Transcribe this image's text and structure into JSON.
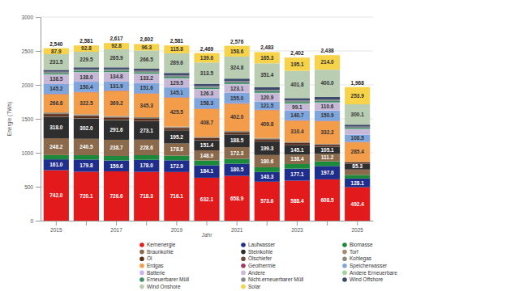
{
  "chart_data": {
    "type": "bar",
    "stacked": true,
    "grid": true,
    "legend": "bottom",
    "data_labels": true,
    "x_label": "Jahr",
    "y_label": "Energie (TWh)",
    "categories": [
      "2015",
      null,
      "2017",
      null,
      "2019",
      null,
      "2021",
      null,
      "2023",
      null,
      "2025"
    ],
    "ylim": [
      0,
      3000
    ],
    "yticks": [
      0,
      500,
      1000,
      1500,
      2000,
      2500,
      3000
    ],
    "totals": [
      2540,
      2581,
      2617,
      2602,
      2581,
      2469,
      2576,
      2483,
      2402,
      2438,
      1968
    ],
    "total_labels": [
      "2,540",
      "2,581",
      "2,617",
      "2,602",
      "2,581",
      "2,469",
      "2,576",
      "2,483",
      "2,402",
      "2,438",
      "1,968"
    ],
    "series": [
      {
        "name": "Kernenergie",
        "color": "#e31a1c",
        "values": [
          742.0,
          720.1,
          726.6,
          718.3,
          716.1,
          632.1,
          658.9,
          573.6,
          588.4,
          608.5,
          492.4
        ],
        "value_labels": [
          "742.0",
          "720.1",
          "726.6",
          "718.3",
          "716.1",
          "632.1",
          "658.9",
          "573.6",
          "588.4",
          "608.5",
          "492.4"
        ]
      },
      {
        "name": "Laufwasser",
        "color": "#1f2e8c",
        "values": [
          161.0,
          179.8,
          159.6,
          178.0,
          172.9,
          184.1,
          180.5,
          143.3,
          177.1,
          197.0,
          128.1
        ],
        "value_labels": [
          "161.0",
          "179.8",
          "159.6",
          "178.0",
          "172.9",
          "184.1",
          "180.5",
          "143.3",
          "177.1",
          "197.0",
          "128.1"
        ]
      },
      {
        "name": "Biomasse",
        "color": "#1b8a3a",
        "values": [
          63.2,
          64.8,
          66.4,
          67.9,
          68.5,
          70.1,
          70.9,
          69.2,
          68.0,
          67.4,
          52.8
        ]
      },
      {
        "name": "Braunkohle",
        "color": "#8a6a4a",
        "values": [
          248.2,
          240.5,
          238.7,
          228.6,
          178.8,
          148.9,
          172.3,
          180.6,
          138.4,
          111.2,
          79.7
        ],
        "value_labels": [
          "248.2",
          "240.5",
          "238.7",
          "228.6",
          "178.8",
          "148.9",
          "172.3",
          "180.6",
          "138.4",
          "111.2",
          null
        ]
      },
      {
        "name": "Steinkohle",
        "color": "#2e2e2e",
        "values": [
          318.0,
          302.0,
          291.6,
          273.1,
          195.2,
          151.4,
          188.5,
          199.3,
          145.1,
          105.1,
          85.3
        ],
        "value_labels": [
          "318.0",
          "302.0",
          "291.6",
          "273.1",
          "195.2",
          "151.4",
          "188.5",
          "199.3",
          "145.1",
          "105.1",
          "85.3"
        ]
      },
      {
        "name": "Torf",
        "color": "#a98b6d",
        "values": [
          4.8,
          4.5,
          4.6,
          4.2,
          3.9,
          3.1,
          3.4,
          3.6,
          2.9,
          2.5,
          1.8
        ]
      },
      {
        "name": "Öl",
        "color": "#5a2d1a",
        "values": [
          32.5,
          31.8,
          30.9,
          30.1,
          29.4,
          27.6,
          27.2,
          28.5,
          26.3,
          25.1,
          18.2
        ]
      },
      {
        "name": "Ölschiefer",
        "color": "#6b4e3d",
        "values": [
          9.8,
          9.1,
          9.5,
          9.7,
          7.8,
          5.6,
          6.8,
          7.9,
          5.4,
          4.8,
          3.3
        ]
      },
      {
        "name": "Kohlegas",
        "color": "#8c8c7a",
        "values": [
          14.2,
          14.6,
          14.1,
          13.8,
          12.9,
          11.4,
          12.2,
          11.8,
          10.5,
          10.1,
          7.1
        ]
      },
      {
        "name": "Erdgas",
        "color": "#f39c4a",
        "values": [
          266.8,
          322.5,
          369.2,
          345.3,
          425.5,
          408.7,
          402.0,
          409.8,
          310.4,
          332.2,
          285.4
        ],
        "value_labels": [
          "266.8",
          "322.5",
          "369.2",
          "345.3",
          "425.5",
          "408.7",
          "402.0",
          "409.8",
          "310.4",
          "332.2",
          "285.4"
        ]
      },
      {
        "name": "Geothermie",
        "color": "#9e3d64",
        "values": [
          6.2,
          6.3,
          6.2,
          6.3,
          6.4,
          6.5,
          6.4,
          6.3,
          6.2,
          6.3,
          4.6
        ]
      },
      {
        "name": "Speicherwasser",
        "color": "#7fa6dc",
        "values": [
          145.2,
          150.4,
          131.9,
          151.6,
          145.1,
          158.3,
          155.0,
          121.5,
          140.7,
          150.9,
          108.5
        ],
        "value_labels": [
          "145.2",
          "150.4",
          "131.9",
          "151.6",
          "145.1",
          "158.3",
          "155.0",
          "121.5",
          "140.7",
          "150.9",
          "108.5"
        ]
      },
      {
        "name": "Batterie",
        "color": "#c9b3f0",
        "values": [
          0.2,
          0.3,
          0.4,
          0.5,
          0.7,
          0.9,
          1.2,
          1.8,
          2.9,
          4.6,
          4.3
        ]
      },
      {
        "name": "Andere",
        "color": "#c8b8d8",
        "values": [
          138.5,
          138.0,
          134.8,
          133.2,
          129.5,
          126.3,
          123.1,
          120.9,
          99.1,
          110.6,
          77.4
        ],
        "value_labels": [
          "138.5",
          "138.0",
          "134.8",
          "133.2",
          "129.5",
          "126.3",
          "123.1",
          "120.9",
          "99.1",
          "110.6",
          null
        ]
      },
      {
        "name": "Andere Erneuerbare",
        "color": "#9fd39f",
        "values": [
          4.1,
          4.3,
          4.4,
          4.5,
          4.6,
          4.8,
          4.9,
          5.0,
          5.1,
          5.2,
          3.9
        ]
      },
      {
        "name": "Erneuerbarer Müll",
        "color": "#3d8f6a",
        "values": [
          19.6,
          20.1,
          20.5,
          20.8,
          21.2,
          21.4,
          21.6,
          21.3,
          21.5,
          21.7,
          16.1
        ]
      },
      {
        "name": "Nicht-erneuerbarer Müll",
        "color": "#8a8a8a",
        "values": [
          19.5,
          19.9,
          20.3,
          20.6,
          20.9,
          21.0,
          21.3,
          21.1,
          21.2,
          21.4,
          15.8
        ]
      },
      {
        "name": "Wind Offshore",
        "color": "#3b4a6b",
        "values": [
          26.8,
          29.7,
          28.6,
          32.7,
          36.2,
          33.7,
          36.4,
          40.8,
          35.9,
          39.4,
          29.3
        ]
      },
      {
        "name": "Wind Onshore",
        "color": "#b9cdb3",
        "values": [
          231.5,
          229.5,
          265.9,
          266.5,
          289.6,
          313.5,
          324.8,
          351.4,
          401.8,
          400.0,
          300.1
        ],
        "value_labels": [
          "231.5",
          "229.5",
          "265.9",
          "266.5",
          "289.6",
          "313.5",
          "324.8",
          "351.4",
          "401.8",
          "400.0",
          "300.1"
        ]
      },
      {
        "name": "Solar",
        "color": "#f7d34a",
        "values": [
          87.9,
          92.8,
          92.8,
          96.3,
          115.8,
          139.6,
          158.6,
          165.3,
          195.1,
          214.0,
          253.9
        ],
        "value_labels": [
          "87.9",
          "92.8",
          "92.8",
          "96.3",
          "115.8",
          "139.6",
          "158.6",
          "165.3",
          "195.1",
          "214.0",
          "253.9"
        ]
      }
    ]
  }
}
